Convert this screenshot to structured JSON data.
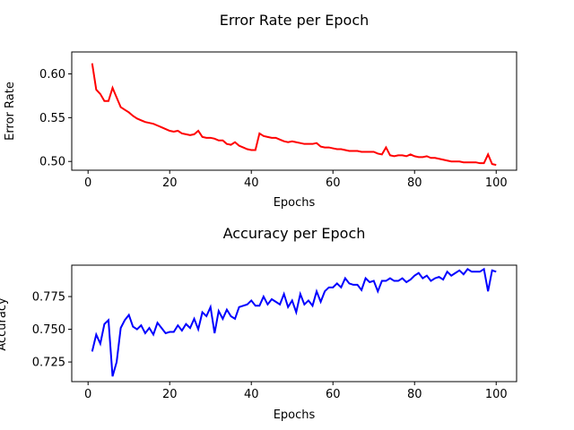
{
  "chart_data": [
    {
      "type": "line",
      "title": "Error Rate per Epoch",
      "xlabel": "Epochs",
      "ylabel": "Error Rate",
      "xlim": [
        -4,
        105
      ],
      "ylim": [
        0.49,
        0.625
      ],
      "xticks": [
        "0",
        "20",
        "40",
        "60",
        "80",
        "100"
      ],
      "xtick_values": [
        0,
        20,
        40,
        60,
        80,
        100
      ],
      "yticks": [
        "0.50",
        "0.55",
        "0.60"
      ],
      "ytick_values": [
        0.5,
        0.55,
        0.6
      ],
      "color": "#ff0000",
      "grid": false,
      "series": [
        {
          "x": [
            1,
            2,
            3,
            4,
            5,
            6,
            7,
            8,
            9,
            10,
            11,
            12,
            13,
            14,
            15,
            16,
            17,
            18,
            19,
            20,
            21,
            22,
            23,
            24,
            25,
            26,
            27,
            28,
            29,
            30,
            31,
            32,
            33,
            34,
            35,
            36,
            37,
            38,
            39,
            40,
            41,
            42,
            43,
            44,
            45,
            46,
            47,
            48,
            49,
            50,
            51,
            52,
            53,
            54,
            55,
            56,
            57,
            58,
            59,
            60,
            61,
            62,
            63,
            64,
            65,
            66,
            67,
            68,
            69,
            70,
            71,
            72,
            73,
            74,
            75,
            76,
            77,
            78,
            79,
            80,
            81,
            82,
            83,
            84,
            85,
            86,
            87,
            88,
            89,
            90,
            91,
            92,
            93,
            94,
            95,
            96,
            97,
            98,
            99,
            100
          ],
          "values": [
            0.612,
            0.582,
            0.577,
            0.569,
            0.569,
            0.584,
            0.573,
            0.562,
            0.559,
            0.556,
            0.552,
            0.549,
            0.547,
            0.545,
            0.544,
            0.543,
            0.541,
            0.539,
            0.537,
            0.535,
            0.534,
            0.535,
            0.532,
            0.531,
            0.53,
            0.531,
            0.535,
            0.528,
            0.527,
            0.527,
            0.526,
            0.524,
            0.524,
            0.52,
            0.519,
            0.522,
            0.518,
            0.516,
            0.514,
            0.513,
            0.513,
            0.532,
            0.529,
            0.528,
            0.527,
            0.527,
            0.525,
            0.523,
            0.522,
            0.523,
            0.522,
            0.521,
            0.52,
            0.52,
            0.52,
            0.521,
            0.517,
            0.516,
            0.516,
            0.515,
            0.514,
            0.514,
            0.513,
            0.512,
            0.512,
            0.512,
            0.511,
            0.511,
            0.511,
            0.511,
            0.509,
            0.508,
            0.516,
            0.507,
            0.506,
            0.507,
            0.507,
            0.506,
            0.508,
            0.506,
            0.505,
            0.505,
            0.506,
            0.504,
            0.504,
            0.503,
            0.502,
            0.501,
            0.5,
            0.5,
            0.5,
            0.499,
            0.499,
            0.499,
            0.499,
            0.498,
            0.498,
            0.508,
            0.497,
            0.496
          ]
        }
      ]
    },
    {
      "type": "line",
      "title": "Accuracy per Epoch",
      "xlabel": "Epochs",
      "ylabel": "Accuracy",
      "xlim": [
        -4,
        105
      ],
      "ylim": [
        0.71,
        0.799
      ],
      "xticks": [
        "0",
        "20",
        "40",
        "60",
        "80",
        "100"
      ],
      "xtick_values": [
        0,
        20,
        40,
        60,
        80,
        100
      ],
      "yticks": [
        "0.725",
        "0.750",
        "0.775"
      ],
      "ytick_values": [
        0.725,
        0.75,
        0.775
      ],
      "color": "#0000ff",
      "grid": false,
      "series": [
        {
          "x": [
            1,
            2,
            3,
            4,
            5,
            6,
            7,
            8,
            9,
            10,
            11,
            12,
            13,
            14,
            15,
            16,
            17,
            18,
            19,
            20,
            21,
            22,
            23,
            24,
            25,
            26,
            27,
            28,
            29,
            30,
            31,
            32,
            33,
            34,
            35,
            36,
            37,
            38,
            39,
            40,
            41,
            42,
            43,
            44,
            45,
            46,
            47,
            48,
            49,
            50,
            51,
            52,
            53,
            54,
            55,
            56,
            57,
            58,
            59,
            60,
            61,
            62,
            63,
            64,
            65,
            66,
            67,
            68,
            69,
            70,
            71,
            72,
            73,
            74,
            75,
            76,
            77,
            78,
            79,
            80,
            81,
            82,
            83,
            84,
            85,
            86,
            87,
            88,
            89,
            90,
            91,
            92,
            93,
            94,
            95,
            96,
            97,
            98,
            99,
            100
          ],
          "values": [
            0.733,
            0.746,
            0.739,
            0.754,
            0.757,
            0.714,
            0.725,
            0.751,
            0.757,
            0.761,
            0.752,
            0.75,
            0.753,
            0.747,
            0.751,
            0.746,
            0.755,
            0.751,
            0.747,
            0.748,
            0.748,
            0.753,
            0.749,
            0.754,
            0.751,
            0.758,
            0.75,
            0.763,
            0.76,
            0.767,
            0.747,
            0.764,
            0.758,
            0.765,
            0.76,
            0.758,
            0.767,
            0.768,
            0.769,
            0.772,
            0.768,
            0.768,
            0.775,
            0.769,
            0.773,
            0.771,
            0.769,
            0.777,
            0.767,
            0.772,
            0.763,
            0.777,
            0.769,
            0.772,
            0.768,
            0.779,
            0.771,
            0.779,
            0.782,
            0.782,
            0.785,
            0.782,
            0.789,
            0.785,
            0.784,
            0.784,
            0.78,
            0.789,
            0.786,
            0.787,
            0.779,
            0.787,
            0.787,
            0.789,
            0.787,
            0.787,
            0.789,
            0.786,
            0.788,
            0.791,
            0.793,
            0.789,
            0.791,
            0.787,
            0.789,
            0.79,
            0.788,
            0.794,
            0.791,
            0.793,
            0.795,
            0.792,
            0.796,
            0.794,
            0.794,
            0.794,
            0.796,
            0.779,
            0.795,
            0.794
          ]
        }
      ]
    }
  ]
}
